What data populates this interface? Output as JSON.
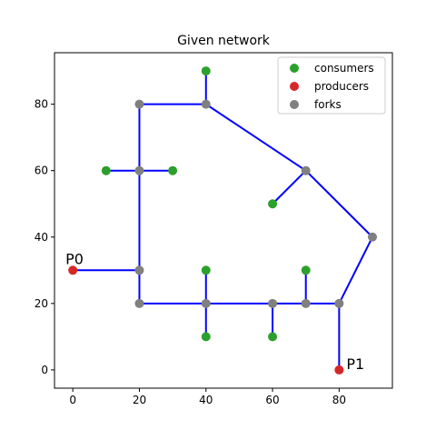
{
  "chart_data": {
    "type": "network",
    "title": "Given network",
    "xlim": [
      -5.5,
      96
    ],
    "ylim": [
      -5.5,
      95.5
    ],
    "xticks": [
      0,
      20,
      40,
      60,
      80
    ],
    "yticks": [
      0,
      20,
      40,
      60,
      80
    ],
    "legend": "upper right",
    "edge_color": "#0000ff",
    "edges": [
      {
        "x": [
          20,
          40
        ],
        "y": [
          80,
          80
        ]
      },
      {
        "x": [
          40,
          40
        ],
        "y": [
          80,
          90
        ]
      },
      {
        "x": [
          40,
          70
        ],
        "y": [
          80,
          60
        ]
      },
      {
        "x": [
          70,
          60
        ],
        "y": [
          60,
          50
        ]
      },
      {
        "x": [
          70,
          90
        ],
        "y": [
          60,
          40
        ]
      },
      {
        "x": [
          90,
          80
        ],
        "y": [
          40,
          20
        ]
      },
      {
        "x": [
          80,
          80
        ],
        "y": [
          20,
          0
        ]
      },
      {
        "x": [
          20,
          20
        ],
        "y": [
          80,
          20
        ]
      },
      {
        "x": [
          10,
          30
        ],
        "y": [
          60,
          60
        ]
      },
      {
        "x": [
          0,
          20
        ],
        "y": [
          30,
          30
        ]
      },
      {
        "x": [
          20,
          80
        ],
        "y": [
          20,
          20
        ]
      },
      {
        "x": [
          40,
          40
        ],
        "y": [
          10,
          30
        ]
      },
      {
        "x": [
          60,
          60
        ],
        "y": [
          10,
          20
        ]
      },
      {
        "x": [
          70,
          70
        ],
        "y": [
          20,
          30
        ]
      }
    ],
    "series": [
      {
        "name": "consumers",
        "color": "#2ca02c",
        "x": [
          40,
          10,
          30,
          60,
          40,
          70,
          40,
          60
        ],
        "y": [
          90,
          60,
          60,
          50,
          30,
          30,
          10,
          10
        ]
      },
      {
        "name": "producers",
        "color": "#d62728",
        "x": [
          0,
          80
        ],
        "y": [
          30,
          0
        ]
      },
      {
        "name": "forks",
        "color": "#808080",
        "x": [
          20,
          40,
          20,
          70,
          90,
          20,
          20,
          40,
          60,
          70,
          80
        ],
        "y": [
          80,
          80,
          60,
          60,
          40,
          30,
          20,
          20,
          20,
          20,
          20
        ]
      }
    ],
    "annotations": [
      {
        "text": "P0",
        "x": 0,
        "y": 30
      },
      {
        "text": "P1",
        "x": 80,
        "y": 0
      }
    ]
  }
}
